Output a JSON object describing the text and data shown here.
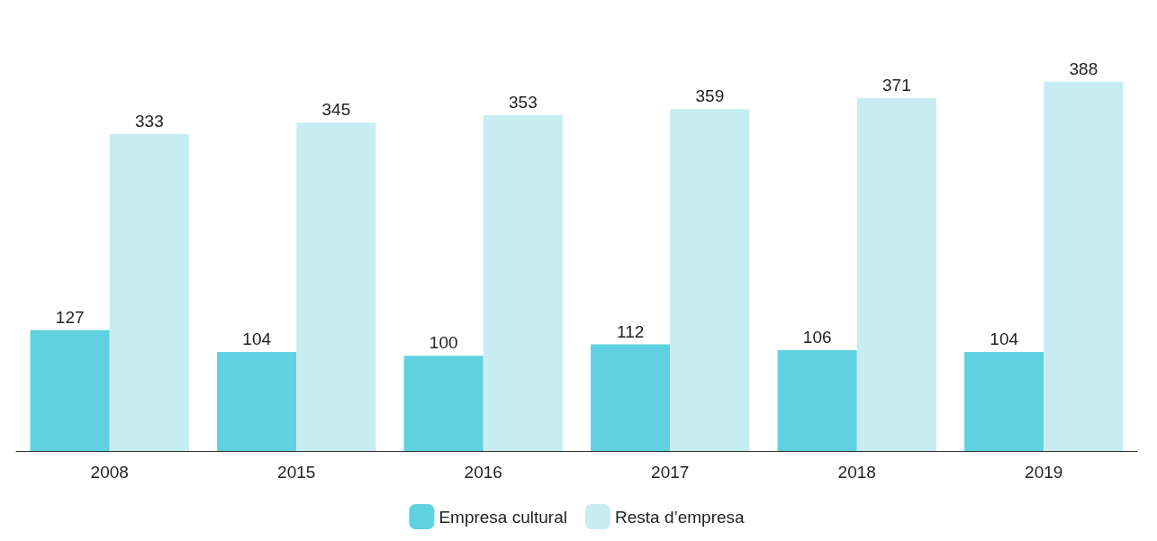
{
  "chart_data": {
    "type": "bar",
    "categories": [
      "2008",
      "2015",
      "2016",
      "2017",
      "2018",
      "2019"
    ],
    "series": [
      {
        "name": "Empresa cultural",
        "color": "#5fd1e0",
        "values": [
          127,
          104,
          100,
          112,
          106,
          104
        ]
      },
      {
        "name": "Resta d’empresa",
        "color": "#c7edf3",
        "values": [
          333,
          345,
          353,
          359,
          371,
          388
        ]
      }
    ],
    "data_labels": true,
    "legend": "bottom",
    "grid": false
  }
}
